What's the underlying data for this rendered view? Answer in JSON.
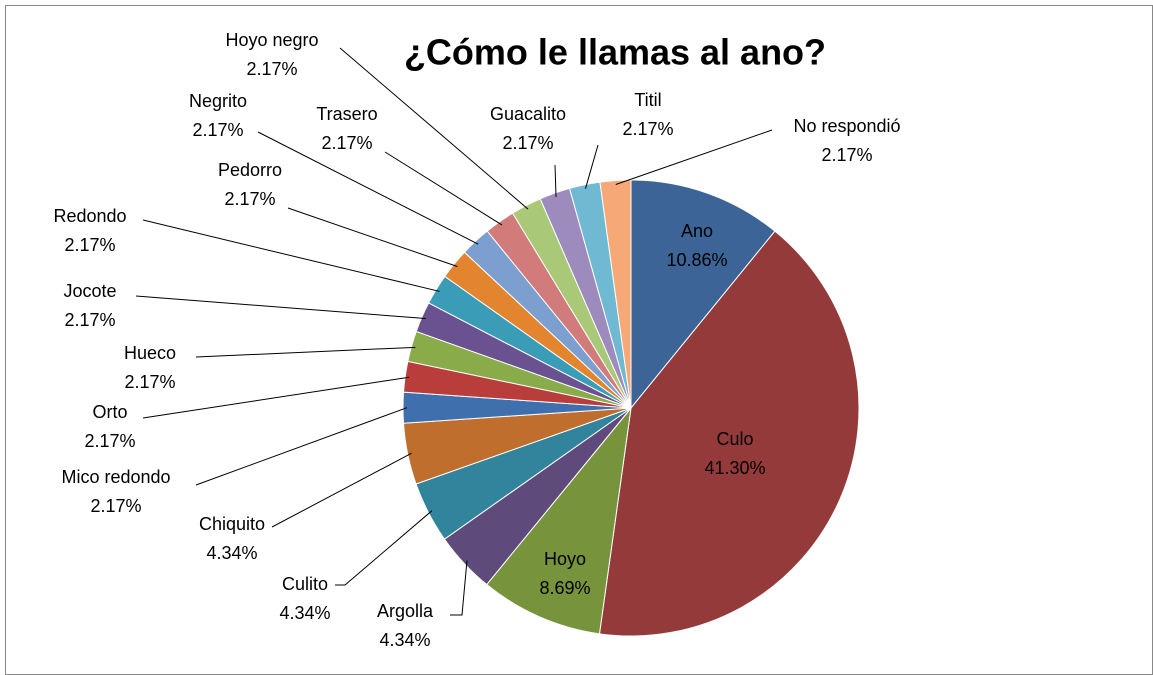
{
  "chart_data": {
    "type": "pie",
    "title": "¿Cómo le llamas al ano?",
    "categories": [
      "Ano",
      "Culo",
      "Hoyo",
      "Argolla",
      "Culito",
      "Chiquito",
      "Mico redondo",
      "Orto",
      "Hueco",
      "Jocote",
      "Redondo",
      "Pedorro",
      "Negrito",
      "Trasero",
      "Hoyo negro",
      "Guacalito",
      "Titil",
      "No respondió"
    ],
    "values": [
      10.86,
      41.3,
      8.69,
      4.34,
      4.34,
      4.34,
      2.17,
      2.17,
      2.17,
      2.17,
      2.17,
      2.17,
      2.17,
      2.17,
      2.17,
      2.17,
      2.17,
      2.17
    ],
    "value_labels": [
      "10.86%",
      "41.30%",
      "8.69%",
      "4.34%",
      "4.34%",
      "4.34%",
      "2.17%",
      "2.17%",
      "2.17%",
      "2.17%",
      "2.17%",
      "2.17%",
      "2.17%",
      "2.17%",
      "2.17%",
      "2.17%",
      "2.17%",
      "2.17%"
    ],
    "colors": [
      "#3d6496",
      "#953a3a",
      "#77933c",
      "#5f4a7c",
      "#31849b",
      "#c06e2e",
      "#3f6fad",
      "#b93d3a",
      "#8aab4a",
      "#6a5290",
      "#3a9cb6",
      "#e3842f",
      "#7c9fd0",
      "#d17b7b",
      "#a9c878",
      "#9d8bbd",
      "#6fbad2",
      "#f6a976"
    ]
  }
}
